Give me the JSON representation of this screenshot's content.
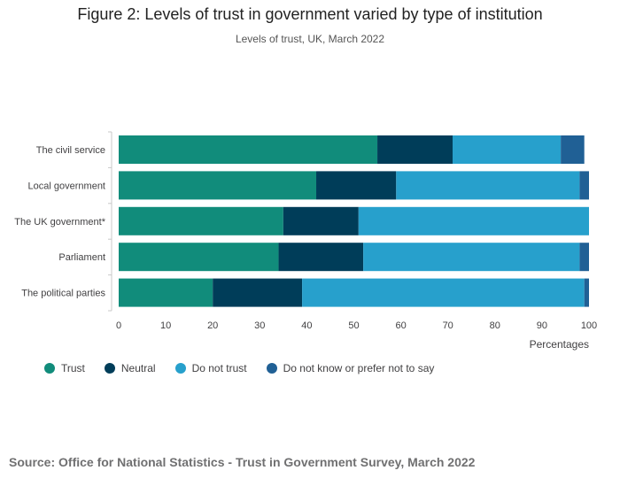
{
  "title": "Figure 2: Levels of trust in government varied by type of institution",
  "subtitle": "Levels of trust, UK, March 2022",
  "source": "Source: Office for National Statistics - Trust in Government Survey, March 2022",
  "chart_data": {
    "type": "bar",
    "orientation": "horizontal",
    "stacked": true,
    "title": "Figure 2: Levels of trust in government varied by type of institution",
    "subtitle": "Levels of trust, UK, March 2022",
    "xlabel": "Percentages",
    "ylabel": "",
    "xlim": [
      0,
      100
    ],
    "xticks": [
      0,
      10,
      20,
      30,
      40,
      50,
      60,
      70,
      80,
      90,
      100
    ],
    "categories": [
      "The civil service",
      "Local government",
      "The UK government*",
      "Parliament",
      "The political parties"
    ],
    "series": [
      {
        "name": "Trust",
        "color": "#118c7b",
        "values": [
          55,
          42,
          35,
          34,
          20
        ]
      },
      {
        "name": "Neutral",
        "color": "#003d59",
        "values": [
          16,
          17,
          16,
          18,
          19
        ]
      },
      {
        "name": "Do not trust",
        "color": "#27a0cc",
        "values": [
          23,
          39,
          49,
          46,
          60
        ]
      },
      {
        "name": "Do not know or prefer not to say",
        "color": "#206095",
        "values": [
          5,
          2,
          0,
          2,
          1
        ]
      }
    ],
    "legend_position": "bottom-left"
  }
}
